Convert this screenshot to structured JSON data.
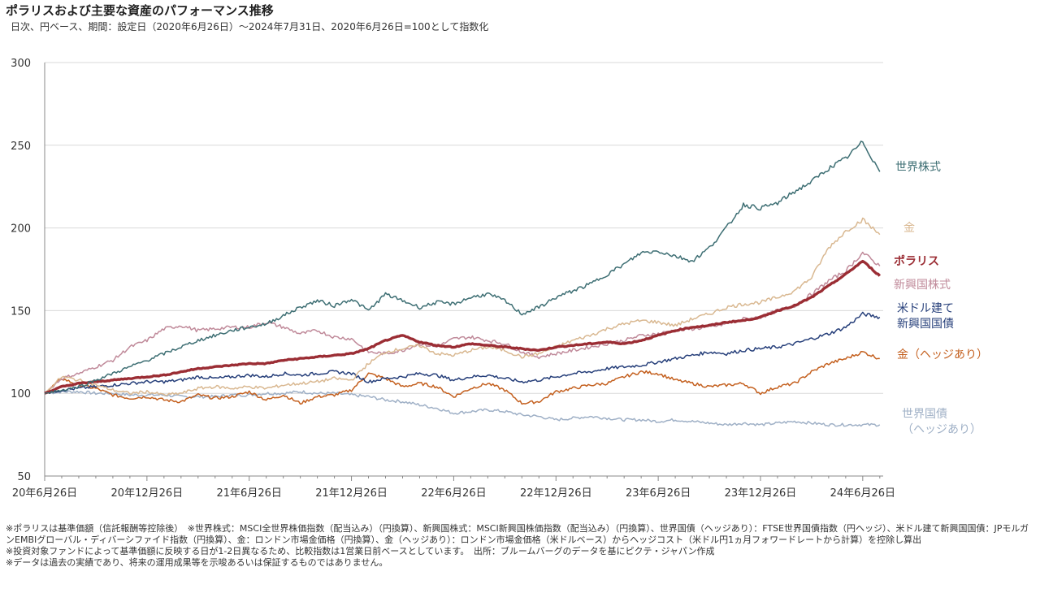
{
  "title": "ポラリスおよび主要な資産のパフォーマンス推移",
  "subtitle": "日次、円ベース、期間：設定日（2020年6月26日）～2024年7月31日、2020年6月26日=100として指数化",
  "notes": [
    "※ポラリスは基準価額（信託報酬等控除後）　※世界株式：MSCI全世界株価指数（配当込み）（円換算）、新興国株式：MSCI新興国株価指数（配当込み）（円換算）、世界国債（ヘッジあり）：FTSE世界国債指数（円ヘッジ）、米ドル建て新興国国債：JPモルガンEMBIグローバル・ディバーシファイド指数（円換算）、金：ロンドン市場金価格（円換算）、金（ヘッジあり）：ロンドン市場金価格（米ドルベース）からヘッジコスト（米ドル円1ヵ月フォワードレートから計算）を控除し算出",
    "※投資対象ファンドによって基準価額に反映する日が1-2日異なるため、比較指数は1営業日前ベースとしています。　出所：ブルームバーグのデータを基にピクテ・ジャパン作成",
    "※データは過去の実績であり、将来の運用成果等を示唆あるいは保証するものではありません。"
  ],
  "chart_data": {
    "type": "line",
    "xlim": [
      0,
      49.2
    ],
    "ylim": [
      50,
      300
    ],
    "yticks": [
      50,
      100,
      150,
      200,
      250,
      300
    ],
    "xticks": [
      {
        "x": 0,
        "label": "20年6月26日"
      },
      {
        "x": 6,
        "label": "20年12月26日"
      },
      {
        "x": 12,
        "label": "21年6月26日"
      },
      {
        "x": 18,
        "label": "21年12月26日"
      },
      {
        "x": 24,
        "label": "22年6月26日"
      },
      {
        "x": 30,
        "label": "22年12月26日"
      },
      {
        "x": 36,
        "label": "23年6月26日"
      },
      {
        "x": 42,
        "label": "23年12月26日"
      },
      {
        "x": 48,
        "label": "24年6月26日"
      }
    ],
    "grid": "horizontal",
    "series": [
      {
        "name": "世界国債（ヘッジあり）",
        "label_lines": [
          "世界国債",
          "（ヘッジあり）"
        ],
        "color": "#9fb0c6",
        "width": 1.5,
        "x": [
          0,
          1,
          2,
          3,
          4,
          5,
          6,
          7,
          8,
          9,
          10,
          11,
          12,
          13,
          14,
          15,
          16,
          17,
          18,
          19,
          20,
          21,
          22,
          23,
          24,
          25,
          26,
          27,
          28,
          29,
          30,
          31,
          32,
          33,
          34,
          35,
          36,
          37,
          38,
          39,
          40,
          41,
          42,
          43,
          44,
          45,
          46,
          47,
          48,
          49
        ],
        "y": [
          100,
          101,
          101,
          100,
          100,
          99,
          99,
          99,
          98,
          98,
          98,
          99,
          99,
          100,
          100,
          101,
          100,
          100,
          99,
          98,
          96,
          95,
          93,
          91,
          88,
          89,
          90,
          89,
          87,
          86,
          84,
          85,
          86,
          85,
          84,
          84,
          83,
          84,
          83,
          82,
          81,
          82,
          81,
          82,
          83,
          82,
          81,
          81,
          81,
          81
        ]
      },
      {
        "name": "金（ヘッジあり）",
        "label_lines": [
          "金（ヘッジあり）"
        ],
        "color": "#c4601f",
        "width": 1.5,
        "x": [
          0,
          1,
          2,
          3,
          4,
          5,
          6,
          7,
          8,
          9,
          10,
          11,
          12,
          13,
          14,
          15,
          16,
          17,
          18,
          19,
          20,
          21,
          22,
          23,
          24,
          25,
          26,
          27,
          28,
          29,
          30,
          31,
          32,
          33,
          34,
          35,
          36,
          37,
          38,
          39,
          40,
          41,
          42,
          43,
          44,
          45,
          46,
          47,
          48,
          49
        ],
        "y": [
          100,
          109,
          105,
          103,
          99,
          97,
          98,
          96,
          95,
          99,
          97,
          98,
          101,
          96,
          99,
          94,
          98,
          99,
          102,
          112,
          109,
          104,
          106,
          104,
          98,
          103,
          106,
          102,
          94,
          95,
          101,
          103,
          105,
          106,
          110,
          113,
          112,
          108,
          106,
          104,
          105,
          106,
          100,
          104,
          106,
          113,
          118,
          121,
          125,
          121
        ]
      },
      {
        "name": "米ドル建て新興国国債",
        "label_lines": [
          "米ドル建て",
          "新興国国債"
        ],
        "color": "#263f7a",
        "width": 1.5,
        "x": [
          0,
          1,
          2,
          3,
          4,
          5,
          6,
          7,
          8,
          9,
          10,
          11,
          12,
          13,
          14,
          15,
          16,
          17,
          18,
          19,
          20,
          21,
          22,
          23,
          24,
          25,
          26,
          27,
          28,
          29,
          30,
          31,
          32,
          33,
          34,
          35,
          36,
          37,
          38,
          39,
          40,
          41,
          42,
          43,
          44,
          45,
          46,
          47,
          48,
          49
        ],
        "y": [
          100,
          102,
          103,
          104,
          105,
          106,
          107,
          107,
          108,
          110,
          109,
          110,
          111,
          110,
          112,
          111,
          112,
          113,
          112,
          107,
          109,
          110,
          112,
          111,
          108,
          110,
          111,
          109,
          107,
          108,
          110,
          112,
          113,
          115,
          116,
          117,
          119,
          121,
          123,
          125,
          124,
          126,
          127,
          128,
          130,
          133,
          136,
          140,
          148,
          146
        ]
      },
      {
        "name": "新興国株式",
        "label_lines": [
          "新興国株式"
        ],
        "color": "#c08a9a",
        "width": 1.5,
        "x": [
          0,
          1,
          2,
          3,
          4,
          5,
          6,
          7,
          8,
          9,
          10,
          11,
          12,
          13,
          14,
          15,
          16,
          17,
          18,
          19,
          20,
          21,
          22,
          23,
          24,
          25,
          26,
          27,
          28,
          29,
          30,
          31,
          32,
          33,
          34,
          35,
          36,
          37,
          38,
          39,
          40,
          41,
          42,
          43,
          44,
          45,
          46,
          47,
          48,
          49
        ],
        "y": [
          100,
          109,
          112,
          116,
          120,
          128,
          132,
          139,
          141,
          138,
          139,
          140,
          140,
          143,
          140,
          136,
          138,
          134,
          133,
          125,
          124,
          126,
          130,
          128,
          133,
          134,
          132,
          130,
          125,
          122,
          124,
          126,
          128,
          130,
          132,
          135,
          136,
          138,
          139,
          140,
          142,
          145,
          146,
          150,
          153,
          160,
          168,
          174,
          185,
          177
        ]
      },
      {
        "name": "金",
        "label_lines": [
          "金"
        ],
        "color": "#d9b891",
        "width": 1.5,
        "x": [
          0,
          1,
          2,
          3,
          4,
          5,
          6,
          7,
          8,
          9,
          10,
          11,
          12,
          13,
          14,
          15,
          16,
          17,
          18,
          19,
          20,
          21,
          22,
          23,
          24,
          25,
          26,
          27,
          28,
          29,
          30,
          31,
          32,
          33,
          34,
          35,
          36,
          37,
          38,
          39,
          40,
          41,
          42,
          43,
          44,
          45,
          46,
          47,
          48,
          49
        ],
        "y": [
          100,
          110,
          108,
          105,
          102,
          100,
          101,
          99,
          100,
          103,
          104,
          103,
          104,
          103,
          105,
          106,
          107,
          109,
          108,
          118,
          125,
          127,
          129,
          124,
          123,
          126,
          128,
          126,
          122,
          124,
          128,
          132,
          135,
          139,
          142,
          144,
          143,
          141,
          145,
          148,
          152,
          154,
          155,
          158,
          162,
          170,
          188,
          198,
          205,
          196
        ]
      },
      {
        "name": "ポラリス",
        "label_lines": [
          "ポラリス"
        ],
        "color": "#9b2d34",
        "width": 3.4,
        "x": [
          0,
          1,
          2,
          3,
          4,
          5,
          6,
          7,
          8,
          9,
          10,
          11,
          12,
          13,
          14,
          15,
          16,
          17,
          18,
          19,
          20,
          21,
          22,
          23,
          24,
          25,
          26,
          27,
          28,
          29,
          30,
          31,
          32,
          33,
          34,
          35,
          36,
          37,
          38,
          39,
          40,
          41,
          42,
          43,
          44,
          45,
          46,
          47,
          48,
          49
        ],
        "y": [
          100,
          104,
          106,
          107,
          108,
          109,
          110,
          111,
          113,
          115,
          116,
          117,
          118,
          118,
          120,
          121,
          122,
          123,
          124,
          127,
          132,
          135,
          131,
          129,
          128,
          130,
          129,
          128,
          127,
          126,
          128,
          129,
          130,
          131,
          130,
          132,
          135,
          138,
          140,
          141,
          143,
          144,
          146,
          150,
          153,
          158,
          165,
          172,
          180,
          171
        ]
      },
      {
        "name": "世界株式",
        "label_lines": [
          "世界株式"
        ],
        "color": "#3d6e73",
        "width": 1.5,
        "x": [
          0,
          1,
          2,
          3,
          4,
          5,
          6,
          7,
          8,
          9,
          10,
          11,
          12,
          13,
          14,
          15,
          16,
          17,
          18,
          19,
          20,
          21,
          22,
          23,
          24,
          25,
          26,
          27,
          28,
          29,
          30,
          31,
          32,
          33,
          34,
          35,
          36,
          37,
          38,
          39,
          40,
          41,
          42,
          43,
          44,
          45,
          46,
          47,
          48,
          49
        ],
        "y": [
          100,
          102,
          104,
          108,
          112,
          116,
          120,
          124,
          128,
          132,
          135,
          138,
          140,
          142,
          147,
          152,
          156,
          153,
          157,
          150,
          160,
          156,
          152,
          155,
          154,
          158,
          160,
          156,
          148,
          152,
          158,
          162,
          166,
          172,
          178,
          185,
          186,
          183,
          180,
          188,
          200,
          214,
          212,
          215,
          222,
          228,
          236,
          242,
          252,
          234
        ]
      }
    ]
  }
}
